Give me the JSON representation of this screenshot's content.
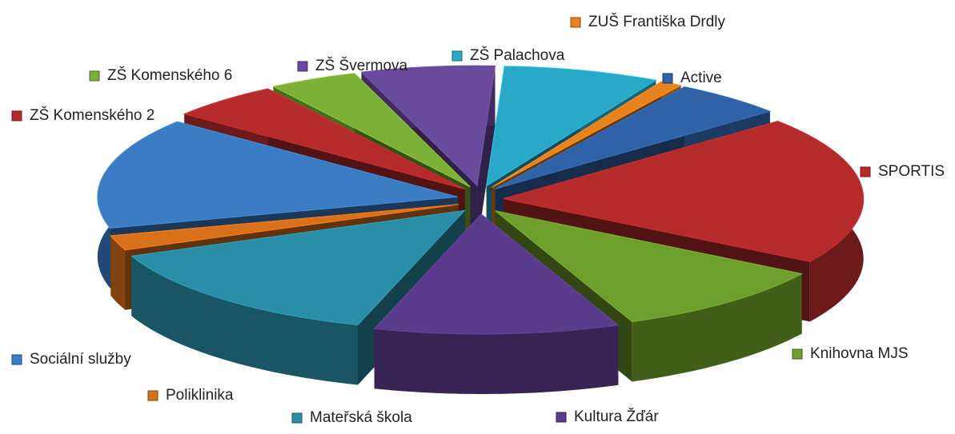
{
  "chart_data": {
    "type": "pie3d",
    "categories": [
      "ZŠ Palachova",
      "ZUŠ Františka Drdly",
      "Active",
      "SPORTIS",
      "Knihovna MJS",
      "Kultura Žďár",
      "Mateřská škola",
      "Poliklinika",
      "Sociální služby",
      "ZŠ Komenského 2",
      "ZŠ Komenského 6",
      "ZŠ Švermova"
    ],
    "values": [
      7,
      1,
      5,
      20,
      10,
      11,
      14,
      2,
      15,
      5,
      4,
      6
    ],
    "colors": [
      "#2aa8c8",
      "#e8821e",
      "#2f62a6",
      "#b52b2b",
      "#6e9e2c",
      "#5b3b8c",
      "#2a8ea6",
      "#d9701a",
      "#3b7cc4",
      "#b52b2b",
      "#7db036",
      "#6a4a9c"
    ]
  }
}
